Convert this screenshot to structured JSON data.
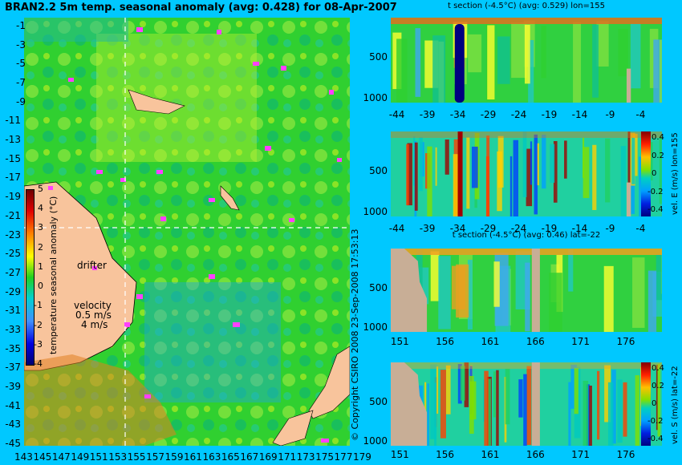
{
  "main_title": "BRAN2.2 5m temp. seasonal anomaly (avg: 0.428) for 08-Apr-2007",
  "copyright": "© Copyright CSIRO 2008 23-Sep-2008 17:53:13",
  "colors": {
    "background": "#00c8ff",
    "land": "#f8c49c",
    "section_land": "#c8ae96",
    "drifter": "#ff40ff",
    "contour": "#70ffff"
  },
  "map": {
    "lat_ticks": [
      "-1",
      "-3",
      "-5",
      "-7",
      "-9",
      "-11",
      "-13",
      "-15",
      "-17",
      "-19",
      "-21",
      "-23",
      "-25",
      "-27",
      "-29",
      "-31",
      "-33",
      "-35",
      "-37",
      "-39",
      "-41",
      "-43",
      "-45"
    ],
    "lon_ticks": [
      "143",
      "145",
      "147",
      "149",
      "151",
      "153",
      "155",
      "157",
      "159",
      "161",
      "163",
      "165",
      "167",
      "169",
      "171",
      "173",
      "175",
      "177",
      "179"
    ],
    "section_lon": 155,
    "section_lat": -22,
    "drifter_label": "drifter",
    "velocity_label": "velocity",
    "velocity_scale": "0.5 m/s",
    "velocity_scale2": "4 m/s"
  },
  "colorbar": {
    "label": "temperature seasonal anomaly (°C)",
    "ticks": [
      "5",
      "4",
      "3",
      "2",
      "1",
      "0",
      "-1",
      "-2",
      "-3",
      "-4"
    ]
  },
  "chart_data": [
    {
      "type": "heatmap",
      "title": "t section (-4.5°C) (avg: 0.529) lon=155",
      "x_ticks": [
        "-44",
        "-39",
        "-34",
        "-29",
        "-24",
        "-19",
        "-14",
        "-9",
        "-4"
      ],
      "y_ticks": [
        "500",
        "1000"
      ],
      "xlim": [
        -45,
        -0.5
      ],
      "ylim": [
        1050,
        0
      ]
    },
    {
      "type": "heatmap",
      "title": "",
      "colorbar_label": "vel. E (m/s) lon=155",
      "colorbar_ticks": [
        "0.4",
        "0.2",
        "0",
        "-0.2",
        "-0.4"
      ],
      "x_ticks": [
        "-44",
        "-39",
        "-34",
        "-29",
        "-24",
        "-19",
        "-14",
        "-9",
        "-4"
      ],
      "y_ticks": [
        "500",
        "1000"
      ],
      "xlim": [
        -45,
        -0.5
      ],
      "ylim": [
        1050,
        0
      ]
    },
    {
      "type": "heatmap",
      "title": "t section (-4.5°C) (avg: 0.46) lat=-22",
      "x_ticks": [
        "151",
        "156",
        "161",
        "166",
        "171",
        "176"
      ],
      "y_ticks": [
        "500",
        "1000"
      ],
      "xlim": [
        150,
        180
      ],
      "ylim": [
        1050,
        0
      ]
    },
    {
      "type": "heatmap",
      "title": "",
      "colorbar_label": "vel. S (m/s) lat=-22",
      "colorbar_ticks": [
        "0.4",
        "0.2",
        "0",
        "-0.2",
        "-0.4"
      ],
      "x_ticks": [
        "151",
        "156",
        "161",
        "166",
        "171",
        "176"
      ],
      "y_ticks": [
        "500",
        "1000"
      ],
      "xlim": [
        150,
        180
      ],
      "ylim": [
        1050,
        0
      ]
    }
  ]
}
